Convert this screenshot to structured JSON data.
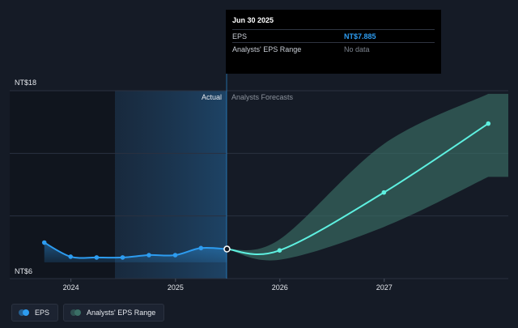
{
  "chart_data": {
    "type": "line",
    "y_axis": {
      "min": 6,
      "max": 18,
      "top_label": "NT$18",
      "bottom_label": "NT$6"
    },
    "x_axis": {
      "ticks": [
        "2024",
        "2025",
        "2026",
        "2027"
      ]
    },
    "sections": {
      "actual_label": "Actual",
      "forecast_label": "Analysts Forecasts"
    },
    "series": [
      {
        "name": "EPS",
        "color": "#2d9cf0",
        "points": [
          {
            "x": "2023-09-30",
            "y": 8.3
          },
          {
            "x": "2023-12-31",
            "y": 7.4
          },
          {
            "x": "2024-03-31",
            "y": 7.35
          },
          {
            "x": "2024-06-30",
            "y": 7.35
          },
          {
            "x": "2024-09-30",
            "y": 7.5
          },
          {
            "x": "2024-12-31",
            "y": 7.5
          },
          {
            "x": "2025-03-31",
            "y": 7.95
          },
          {
            "x": "2025-06-30",
            "y": 7.885
          }
        ]
      },
      {
        "name": "Analysts' EPS Range",
        "color": "#5ef0e0",
        "band_color": "#3a6e65",
        "points": [
          {
            "x": "2025-06-30",
            "y": 7.885,
            "low": 7.885,
            "high": 7.885
          },
          {
            "x": "2025-12-31",
            "y": 7.8,
            "low": 7.2,
            "high": 8.5
          },
          {
            "x": "2026-12-31",
            "y": 11.5,
            "low": 9.3,
            "high": 14.6
          },
          {
            "x": "2027-12-31",
            "y": 15.9,
            "low": 12.5,
            "high": 17.8
          }
        ]
      }
    ]
  },
  "tooltip": {
    "date": "Jun 30 2025",
    "rows": [
      {
        "label": "EPS",
        "value": "NT$7.885"
      },
      {
        "label": "Analysts' EPS Range",
        "value": "No data"
      }
    ]
  },
  "legend": {
    "items": [
      {
        "label": "EPS",
        "color": "#2d9cf0"
      },
      {
        "label": "Analysts' EPS Range",
        "color": "#3a6e65"
      }
    ]
  }
}
